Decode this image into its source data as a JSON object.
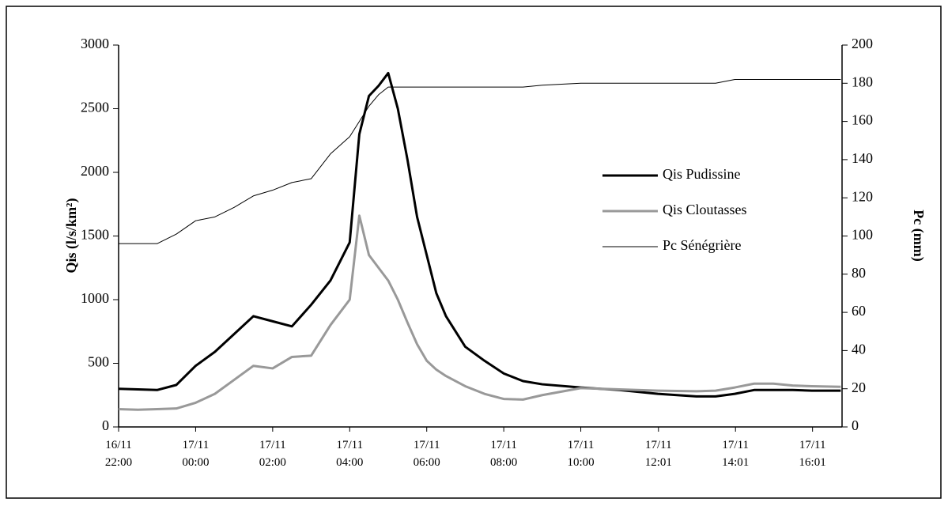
{
  "chart_data": {
    "type": "line",
    "y_label": "Qis (l/s/km²)",
    "y2_label": "Pc (mm)",
    "x": [
      "16/11 22:00",
      "16/11 22:30",
      "16/11 23:00",
      "16/11 23:30",
      "17/11 00:00",
      "17/11 00:30",
      "17/11 01:00",
      "17/11 01:30",
      "17/11 02:00",
      "17/11 02:30",
      "17/11 03:00",
      "17/11 03:30",
      "17/11 04:00",
      "17/11 04:15",
      "17/11 04:30",
      "17/11 04:45",
      "17/11 05:00",
      "17/11 05:15",
      "17/11 05:30",
      "17/11 05:45",
      "17/11 06:00",
      "17/11 06:15",
      "17/11 06:30",
      "17/11 07:00",
      "17/11 07:30",
      "17/11 08:00",
      "17/11 08:30",
      "17/11 09:00",
      "17/11 10:00",
      "17/11 11:00",
      "17/11 12:00",
      "17/11 13:00",
      "17/11 13:30",
      "17/11 14:00",
      "17/11 14:30",
      "17/11 15:00",
      "17/11 15:30",
      "17/11 16:00",
      "17/11 16:45"
    ],
    "series": [
      {
        "name": "Qis Pudissine",
        "color": "#000000",
        "width": 3,
        "values": [
          300,
          295,
          290,
          330,
          480,
          590,
          730,
          870,
          830,
          790,
          960,
          1150,
          1450,
          2300,
          2600,
          2680,
          2780,
          2500,
          2100,
          1650,
          1350,
          1050,
          870,
          630,
          520,
          420,
          360,
          335,
          310,
          290,
          260,
          240,
          240,
          260,
          290,
          290,
          290,
          285,
          285
        ]
      },
      {
        "name": "Qis Cloutasses",
        "color": "#999999",
        "width": 3,
        "values": [
          140,
          135,
          140,
          145,
          190,
          260,
          370,
          480,
          460,
          550,
          560,
          800,
          1000,
          1660,
          1350,
          1250,
          1150,
          1000,
          820,
          650,
          520,
          450,
          400,
          320,
          260,
          220,
          215,
          250,
          305,
          295,
          285,
          280,
          285,
          310,
          340,
          340,
          325,
          320,
          315
        ]
      },
      {
        "name": "Pc Sénégrière",
        "color": "#000000",
        "width": 1,
        "axis": "y2",
        "values": [
          96,
          96,
          96,
          101,
          108,
          110,
          115,
          121,
          124,
          128,
          130,
          143,
          152,
          160,
          168,
          174,
          178,
          178,
          178,
          178,
          178,
          178,
          178,
          178,
          178,
          178,
          178,
          179,
          180,
          180,
          180,
          180,
          180,
          182,
          182,
          182,
          182,
          182,
          182
        ]
      }
    ],
    "xlim": [
      "16/11 22:00",
      "17/11 16:47"
    ],
    "xticks": [
      {
        "value": "16/11 22:00",
        "label": "16/11\n22:00"
      },
      {
        "value": "17/11 00:00",
        "label": "17/11\n00:00"
      },
      {
        "value": "17/11 02:00",
        "label": "17/11\n02:00"
      },
      {
        "value": "17/11 04:00",
        "label": "17/11\n04:00"
      },
      {
        "value": "17/11 06:00",
        "label": "17/11\n06:00"
      },
      {
        "value": "17/11 08:00",
        "label": "17/11\n08:00"
      },
      {
        "value": "17/11 10:00",
        "label": "17/11\n10:00"
      },
      {
        "value": "17/11 12:01",
        "label": "17/11\n12:01"
      },
      {
        "value": "17/11 14:01",
        "label": "17/11\n14:01"
      },
      {
        "value": "17/11 16:01",
        "label": "17/11\n16:01"
      }
    ],
    "ylim": [
      0,
      3000
    ],
    "yticks": [
      0,
      500,
      1000,
      1500,
      2000,
      2500,
      3000
    ],
    "y2lim": [
      0,
      200
    ],
    "y2ticks": [
      0,
      20,
      40,
      60,
      80,
      100,
      120,
      140,
      160,
      180,
      200
    ],
    "legend": "right",
    "grid": false
  }
}
